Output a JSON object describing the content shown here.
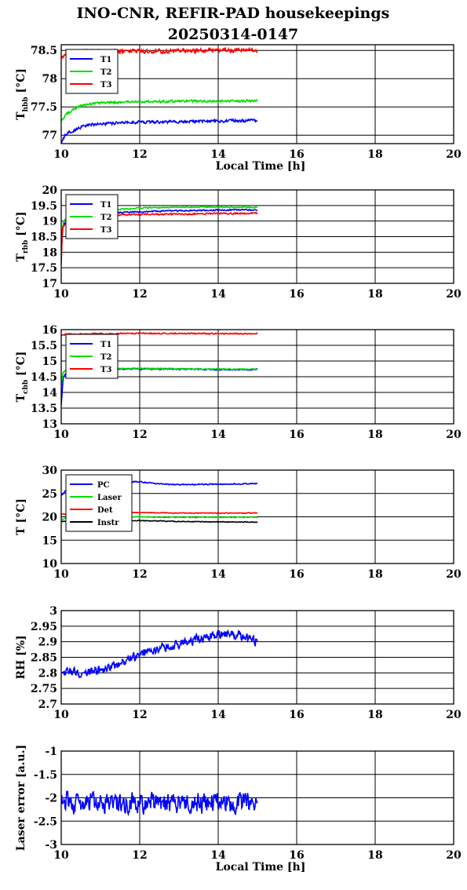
{
  "figure": {
    "title_line1": "INO-CNR, REFIR-PAD housekeepings",
    "title_line2": "20250314-0147"
  },
  "chart_data": [
    {
      "type": "line",
      "ylabel_main": "T",
      "ylabel_sub": "hbb",
      "ylabel_unit": "[°C]",
      "xlabel": "Local Time [h]",
      "xlim": [
        10,
        20
      ],
      "ylim": [
        76.85,
        78.6
      ],
      "xticks": [
        "10",
        "12",
        "14",
        "16",
        "18",
        "20"
      ],
      "yticks": [
        {
          "v": 77,
          "label": "77"
        },
        {
          "v": 77.5,
          "label": "77.5"
        },
        {
          "v": 78,
          "label": "78"
        },
        {
          "v": 78.5,
          "label": "78.5"
        }
      ],
      "grid": true,
      "legend": "top-left",
      "series": [
        {
          "name": "T1",
          "color": "#0000ff",
          "x": [
            10,
            10.1,
            10.3,
            10.5,
            10.7,
            11,
            11.5,
            12,
            13,
            14,
            15
          ],
          "values": [
            76.85,
            77.0,
            77.08,
            77.14,
            77.18,
            77.2,
            77.22,
            77.23,
            77.24,
            77.25,
            77.26
          ],
          "noise": 0.025
        },
        {
          "name": "T2",
          "color": "#00dd00",
          "x": [
            10,
            10.1,
            10.3,
            10.5,
            10.7,
            11,
            11.5,
            12,
            13,
            14,
            15
          ],
          "values": [
            77.25,
            77.35,
            77.45,
            77.52,
            77.55,
            77.57,
            77.58,
            77.59,
            77.6,
            77.6,
            77.61
          ],
          "noise": 0.02
        },
        {
          "name": "T3",
          "color": "#ff0000",
          "x": [
            10,
            10.2,
            10.5,
            11,
            12,
            13,
            14,
            15
          ],
          "values": [
            78.35,
            78.45,
            78.48,
            78.48,
            78.48,
            78.49,
            78.5,
            78.5
          ],
          "noise": 0.035
        }
      ]
    },
    {
      "type": "line",
      "ylabel_main": "T",
      "ylabel_sub": "rbb",
      "ylabel_unit": "[°C]",
      "xlabel": "",
      "xlim": [
        10,
        20
      ],
      "ylim": [
        17,
        20
      ],
      "xticks": [
        "10",
        "12",
        "14",
        "16",
        "18",
        "20"
      ],
      "yticks": [
        {
          "v": 17,
          "label": "17"
        },
        {
          "v": 17.5,
          "label": "17.5"
        },
        {
          "v": 18,
          "label": "18"
        },
        {
          "v": 18.5,
          "label": "18.5"
        },
        {
          "v": 19,
          "label": "19"
        },
        {
          "v": 19.5,
          "label": "19.5"
        },
        {
          "v": 20,
          "label": "20"
        }
      ],
      "grid": true,
      "legend": "top-left",
      "series": [
        {
          "name": "T1",
          "color": "#0000ff",
          "x": [
            10,
            10.05,
            10.3,
            11,
            12,
            13,
            14,
            15
          ],
          "values": [
            18.0,
            18.9,
            19.1,
            19.25,
            19.3,
            19.33,
            19.35,
            19.36
          ],
          "noise": 0.02
        },
        {
          "name": "T2",
          "color": "#00dd00",
          "x": [
            10,
            10.05,
            10.3,
            11,
            12,
            13,
            14,
            15
          ],
          "values": [
            18.1,
            19.0,
            19.2,
            19.33,
            19.42,
            19.45,
            19.45,
            19.44
          ],
          "noise": 0.02
        },
        {
          "name": "T3",
          "color": "#ff0000",
          "x": [
            10,
            10.03,
            10.3,
            11,
            12,
            13,
            14,
            15
          ],
          "values": [
            17.6,
            18.8,
            19.05,
            19.18,
            19.22,
            19.22,
            19.24,
            19.25
          ],
          "noise": 0.025
        }
      ]
    },
    {
      "type": "line",
      "ylabel_main": "T",
      "ylabel_sub": "cbb",
      "ylabel_unit": "[°C]",
      "xlabel": "",
      "xlim": [
        10,
        20
      ],
      "ylim": [
        13,
        16
      ],
      "xticks": [
        "10",
        "12",
        "14",
        "16",
        "18",
        "20"
      ],
      "yticks": [
        {
          "v": 13,
          "label": "13"
        },
        {
          "v": 13.5,
          "label": "13.5"
        },
        {
          "v": 14,
          "label": "14"
        },
        {
          "v": 14.5,
          "label": "14.5"
        },
        {
          "v": 15,
          "label": "15"
        },
        {
          "v": 15.5,
          "label": "15.5"
        },
        {
          "v": 16,
          "label": "16"
        }
      ],
      "grid": true,
      "legend": "top-left",
      "series": [
        {
          "name": "T1",
          "color": "#0000ff",
          "x": [
            10,
            10.05,
            10.2,
            11,
            12,
            13,
            14,
            15
          ],
          "values": [
            13.6,
            14.5,
            14.72,
            14.75,
            14.75,
            14.74,
            14.73,
            14.73
          ],
          "noise": 0.02
        },
        {
          "name": "T2",
          "color": "#00dd00",
          "x": [
            10,
            10.05,
            10.2,
            11,
            12,
            13,
            14,
            15
          ],
          "values": [
            14.2,
            14.65,
            14.74,
            14.76,
            14.76,
            14.75,
            14.74,
            14.74
          ],
          "noise": 0.02
        },
        {
          "name": "T3",
          "color": "#ff0000",
          "x": [
            10,
            10.1,
            11,
            12,
            13,
            14,
            15
          ],
          "values": [
            15.8,
            15.85,
            15.87,
            15.88,
            15.88,
            15.87,
            15.87
          ],
          "noise": 0.02
        }
      ]
    },
    {
      "type": "line",
      "ylabel_main": "T [°C]",
      "ylabel_sub": "",
      "ylabel_unit": "",
      "xlabel": "",
      "xlim": [
        10,
        20
      ],
      "ylim": [
        10,
        30
      ],
      "xticks": [
        "10",
        "12",
        "14",
        "16",
        "18",
        "20"
      ],
      "yticks": [
        {
          "v": 10,
          "label": "10"
        },
        {
          "v": 15,
          "label": "15"
        },
        {
          "v": 20,
          "label": "20"
        },
        {
          "v": 25,
          "label": "25"
        },
        {
          "v": 30,
          "label": "30"
        }
      ],
      "grid": true,
      "legend": "top-left",
      "series": [
        {
          "name": "PC",
          "color": "#0000ff",
          "x": [
            10,
            10.2,
            10.5,
            11,
            12,
            12.5,
            13,
            14,
            15
          ],
          "values": [
            24.5,
            26.5,
            27.2,
            27.5,
            27.5,
            27.0,
            26.9,
            27.0,
            27.1
          ],
          "noise": 0.12
        },
        {
          "name": "Laser",
          "color": "#00dd00",
          "x": [
            10,
            10.3,
            11,
            12,
            13,
            14,
            15
          ],
          "values": [
            19.5,
            19.8,
            20.0,
            20.0,
            19.9,
            19.9,
            19.9
          ],
          "noise": 0.1
        },
        {
          "name": "Det",
          "color": "#ff0000",
          "x": [
            10,
            10.3,
            11,
            12,
            13,
            14,
            15
          ],
          "values": [
            20.5,
            20.8,
            20.9,
            20.9,
            20.8,
            20.8,
            20.8
          ],
          "noise": 0.08
        },
        {
          "name": "Instr",
          "color": "#000000",
          "x": [
            10,
            10.3,
            11,
            12,
            13,
            14,
            15
          ],
          "values": [
            19.0,
            19.2,
            19.3,
            19.2,
            19.0,
            18.9,
            18.9
          ],
          "noise": 0.08
        }
      ]
    },
    {
      "type": "line",
      "ylabel_main": "RH [%]",
      "ylabel_sub": "",
      "ylabel_unit": "",
      "xlabel": "",
      "xlim": [
        10,
        20
      ],
      "ylim": [
        2.7,
        3
      ],
      "xticks": [
        "10",
        "12",
        "14",
        "16",
        "18",
        "20"
      ],
      "yticks": [
        {
          "v": 2.7,
          "label": "2.7"
        },
        {
          "v": 2.75,
          "label": "2.75"
        },
        {
          "v": 2.8,
          "label": "2.8"
        },
        {
          "v": 2.85,
          "label": "2.85"
        },
        {
          "v": 2.9,
          "label": "2.9"
        },
        {
          "v": 2.95,
          "label": "2.95"
        },
        {
          "v": 3,
          "label": "3"
        }
      ],
      "grid": true,
      "legend": "none",
      "series": [
        {
          "color": "#0000ff",
          "x": [
            10,
            10.5,
            11,
            11.5,
            12,
            12.5,
            13,
            13.5,
            14,
            14.5,
            15
          ],
          "values": [
            2.81,
            2.8,
            2.81,
            2.83,
            2.86,
            2.88,
            2.89,
            2.91,
            2.92,
            2.92,
            2.9
          ],
          "noise": 0.015
        }
      ]
    },
    {
      "type": "line",
      "ylabel_main": "Laser error [a.u.]",
      "ylabel_sub": "",
      "ylabel_unit": "",
      "xlabel": "Local Time [h]",
      "xlim": [
        10,
        20
      ],
      "ylim": [
        -3,
        -1
      ],
      "xticks": [
        "10",
        "12",
        "14",
        "16",
        "18",
        "20"
      ],
      "yticks": [
        {
          "v": -3,
          "label": "-3"
        },
        {
          "v": -2.5,
          "label": "-2.5"
        },
        {
          "v": -2,
          "label": "-2"
        },
        {
          "v": -1.5,
          "label": "-1.5"
        },
        {
          "v": -1,
          "label": "-1"
        }
      ],
      "grid": true,
      "legend": "none",
      "series": [
        {
          "color": "#0000ff",
          "x": [
            10,
            11,
            12,
            13,
            14,
            15
          ],
          "values": [
            -2.1,
            -2.1,
            -2.1,
            -2.1,
            -2.1,
            -2.1
          ],
          "noise": 0.22
        }
      ]
    }
  ]
}
